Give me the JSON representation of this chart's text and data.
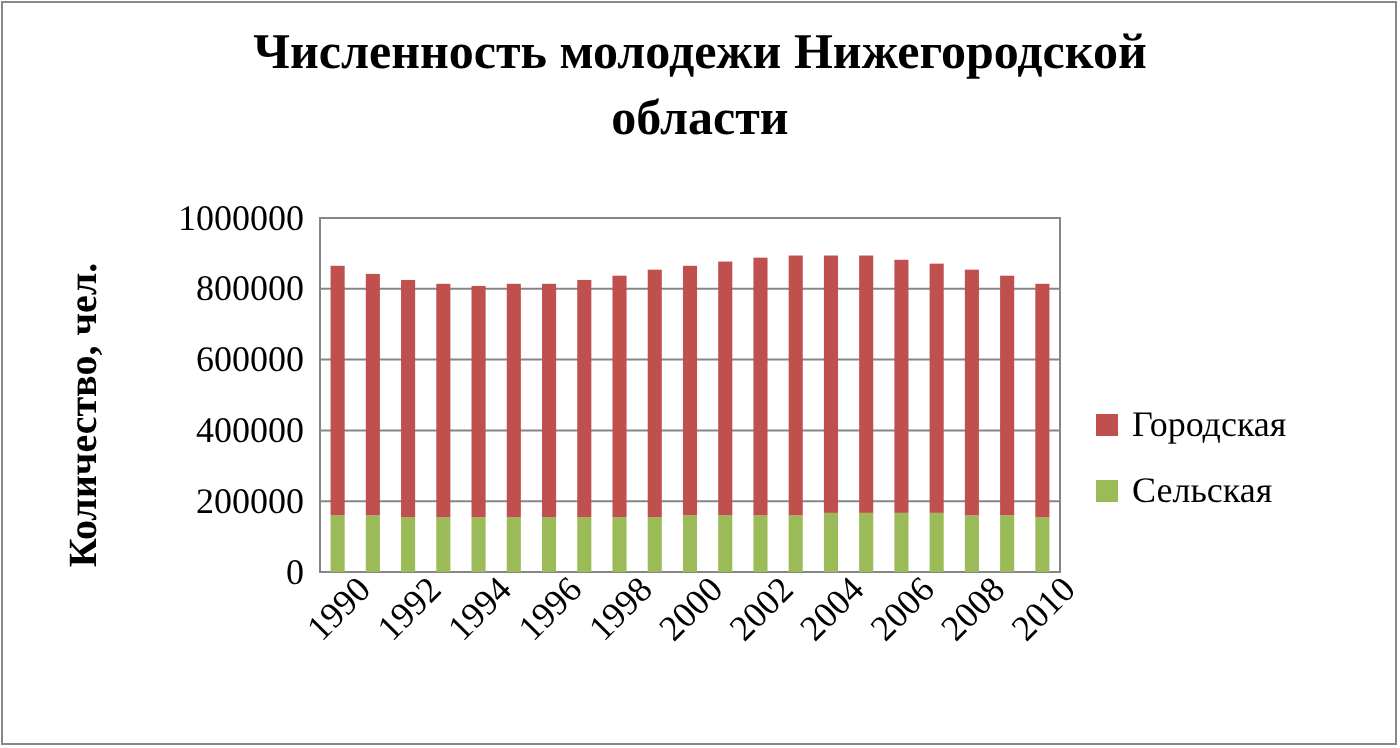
{
  "chart_data": {
    "type": "bar",
    "title": "Численность молодежи Нижегородской области",
    "ylabel": "Количество, чел.",
    "stacked": true,
    "categories": [
      "1990",
      null,
      "1992",
      null,
      "1994",
      null,
      "1996",
      null,
      "1998",
      null,
      "2000",
      null,
      "2002",
      null,
      "2004",
      null,
      "2006",
      null,
      "2008",
      null,
      "2010"
    ],
    "series": [
      {
        "name": "Сельская",
        "color": "#9bbb59",
        "values": [
          160000,
          160000,
          155000,
          155000,
          155000,
          155000,
          155000,
          155000,
          155000,
          155000,
          160000,
          160000,
          160000,
          160000,
          167000,
          167000,
          167000,
          167000,
          160000,
          160000,
          155000
        ]
      },
      {
        "name": "Городская",
        "color": "#c0504d",
        "values": [
          705000,
          682000,
          670000,
          659000,
          653000,
          659000,
          659000,
          670000,
          682000,
          699000,
          705000,
          717000,
          728000,
          734000,
          727000,
          727000,
          715000,
          704000,
          694000,
          677000,
          659000
        ]
      }
    ],
    "ylim": [
      0,
      1000000
    ],
    "yticks": [
      0,
      200000,
      400000,
      600000,
      800000,
      1000000
    ],
    "grid": "y",
    "legend": "right"
  }
}
